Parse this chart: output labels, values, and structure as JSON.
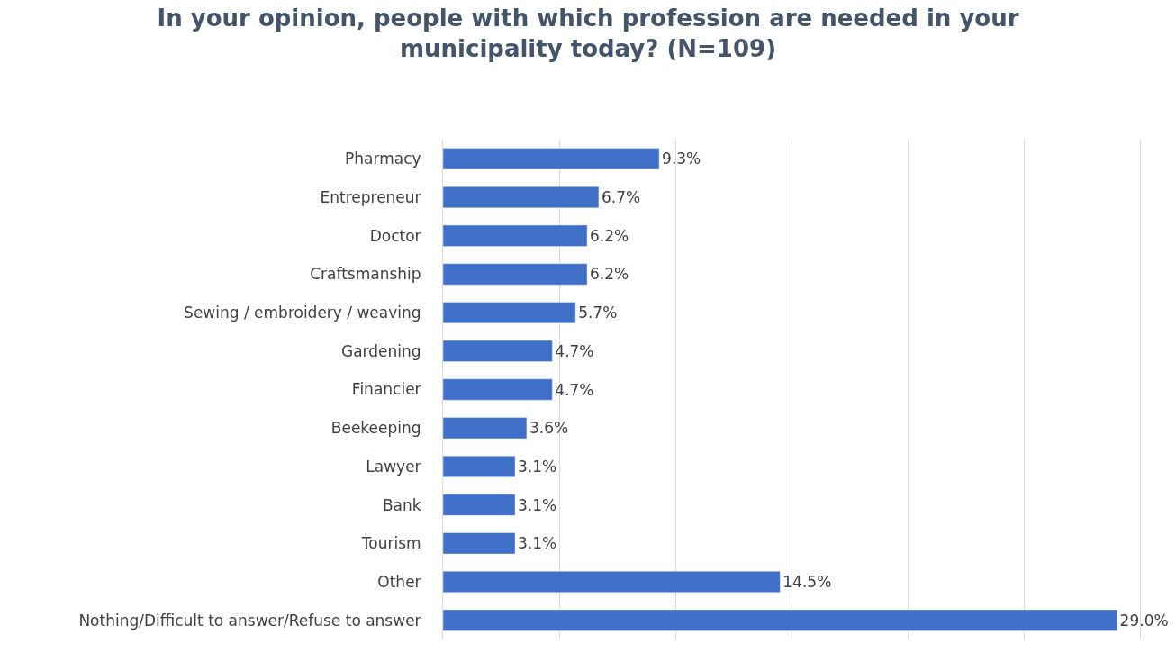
{
  "chart_data": {
    "type": "bar",
    "orientation": "horizontal",
    "title": "In your opinion, people with which profession are needed in your municipality today? (N=109)",
    "categories": [
      "Pharmacy",
      "Entrepreneur",
      "Doctor",
      "Craftsmanship",
      "Sewing / embroidery / weaving",
      "Gardening",
      "Financier",
      "Beekeeping",
      "Lawyer",
      "Bank",
      "Tourism",
      "Other",
      "Nothing/Difficult to answer/Refuse to answer"
    ],
    "values": [
      9.3,
      6.7,
      6.2,
      6.2,
      5.7,
      4.7,
      4.7,
      3.6,
      3.1,
      3.1,
      3.1,
      14.5,
      29.0
    ],
    "value_labels": [
      "9.3%",
      "6.7%",
      "6.2%",
      "6.2%",
      "5.7%",
      "4.7%",
      "4.7%",
      "3.6%",
      "3.1%",
      "3.1%",
      "3.1%",
      "14.5%",
      "29.0%"
    ],
    "color": "#3f6fc6",
    "grid": "x",
    "tick_labels": "y",
    "legend": false
  }
}
